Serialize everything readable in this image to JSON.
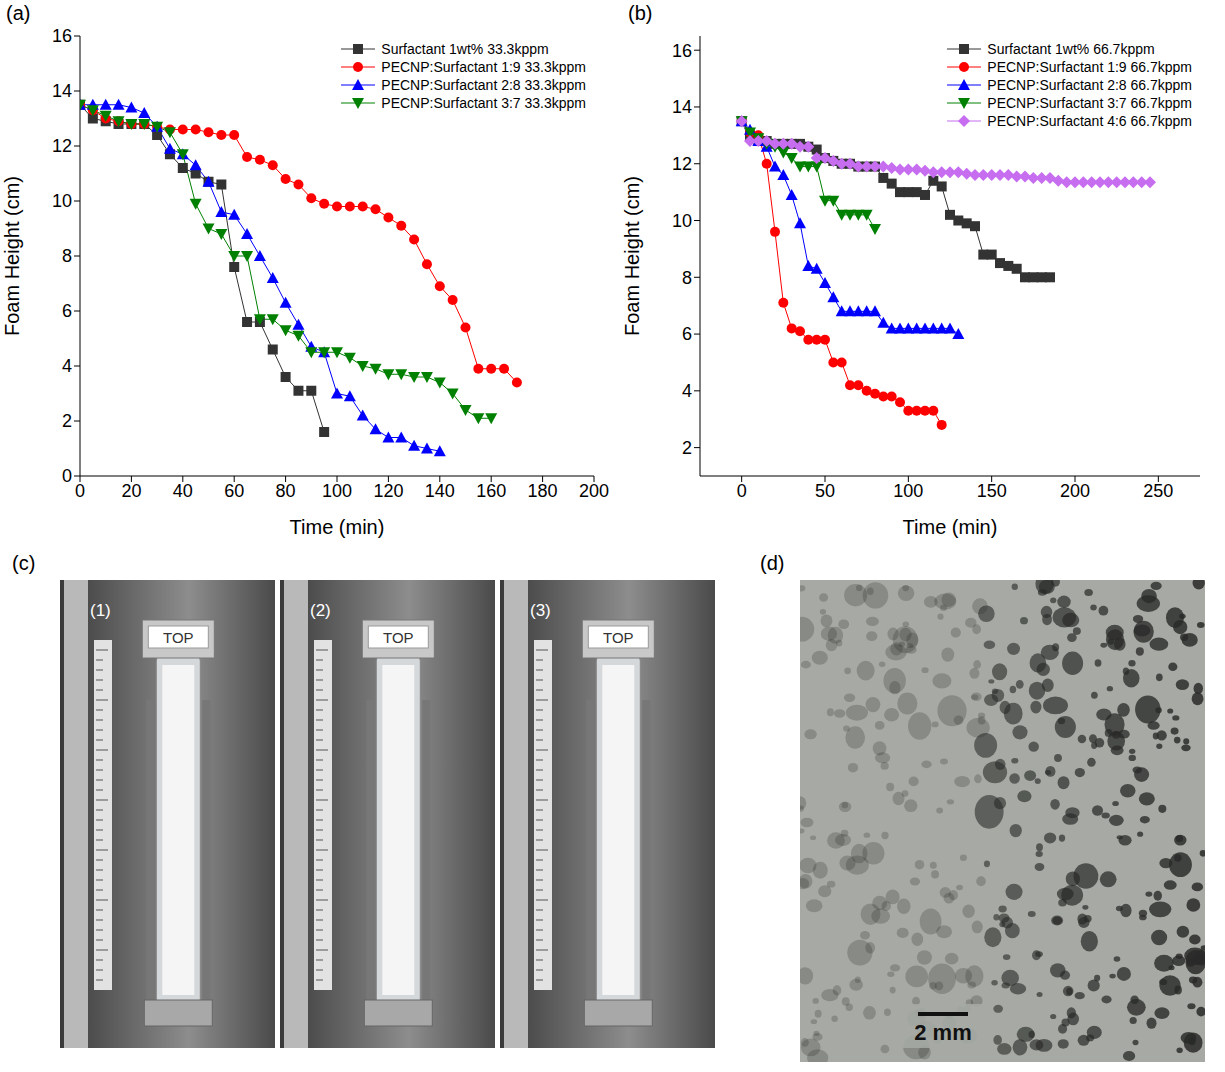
{
  "chart_data": [
    {
      "type": "line",
      "panel_label": "(a)",
      "x_label": "Time (min)",
      "y_label": "Foam Height (cm)",
      "xlim": [
        0,
        200
      ],
      "xticks": [
        0,
        20,
        40,
        60,
        80,
        100,
        120,
        140,
        160,
        180,
        200
      ],
      "ylim": [
        0,
        16
      ],
      "yticks": [
        0,
        2,
        4,
        6,
        8,
        10,
        12,
        14,
        16
      ],
      "legend": "upper right",
      "series": [
        {
          "name": "Surfactant 1wt% 33.3kppm",
          "color": "#333333",
          "marker": "square",
          "x": [
            0,
            5,
            10,
            15,
            20,
            25,
            30,
            35,
            40,
            45,
            50,
            55,
            60,
            65,
            70,
            75,
            80,
            85,
            90,
            95
          ],
          "values": [
            13.5,
            13.0,
            12.9,
            12.8,
            12.8,
            12.8,
            12.4,
            11.7,
            11.2,
            11.0,
            10.7,
            10.6,
            7.6,
            5.6,
            5.6,
            4.6,
            3.6,
            3.1,
            3.1,
            1.6
          ]
        },
        {
          "name": "PECNP:Surfactant 1:9 33.3kppm",
          "color": "#ff0000",
          "marker": "circle",
          "x": [
            0,
            5,
            10,
            15,
            20,
            25,
            30,
            35,
            40,
            45,
            50,
            55,
            60,
            65,
            70,
            75,
            80,
            85,
            90,
            95,
            100,
            105,
            110,
            115,
            120,
            125,
            130,
            135,
            140,
            145,
            150,
            155,
            160,
            165,
            170
          ],
          "values": [
            13.5,
            13.3,
            13.0,
            12.9,
            12.8,
            12.8,
            12.7,
            12.6,
            12.6,
            12.6,
            12.5,
            12.4,
            12.4,
            11.6,
            11.5,
            11.3,
            10.8,
            10.6,
            10.1,
            9.9,
            9.8,
            9.8,
            9.8,
            9.7,
            9.4,
            9.1,
            8.6,
            7.7,
            6.9,
            6.4,
            5.4,
            3.9,
            3.9,
            3.9,
            3.4
          ]
        },
        {
          "name": "PECNP:Surfactant 2:8 33.3kppm",
          "color": "#0000ff",
          "marker": "triangle",
          "x": [
            0,
            5,
            10,
            15,
            20,
            25,
            30,
            35,
            40,
            45,
            50,
            55,
            60,
            65,
            70,
            75,
            80,
            85,
            90,
            95,
            100,
            105,
            110,
            115,
            120,
            125,
            130,
            135,
            140
          ],
          "values": [
            13.5,
            13.5,
            13.5,
            13.5,
            13.4,
            13.2,
            12.7,
            11.9,
            11.7,
            11.3,
            10.7,
            9.6,
            9.5,
            8.8,
            8.0,
            7.2,
            6.3,
            5.5,
            4.7,
            4.5,
            3.0,
            2.9,
            2.2,
            1.7,
            1.4,
            1.4,
            1.1,
            1.0,
            0.9
          ]
        },
        {
          "name": "PECNP:Surfactant 3:7 33.3kppm",
          "color": "#008000",
          "marker": "triangle-down",
          "x": [
            0,
            5,
            10,
            15,
            20,
            25,
            30,
            35,
            40,
            45,
            50,
            55,
            60,
            65,
            70,
            75,
            80,
            85,
            90,
            95,
            100,
            105,
            110,
            115,
            120,
            125,
            130,
            135,
            140,
            145,
            150,
            155,
            160
          ],
          "values": [
            13.5,
            13.3,
            13.1,
            12.9,
            12.8,
            12.8,
            12.7,
            12.5,
            11.7,
            9.9,
            9.0,
            8.8,
            8.0,
            8.0,
            5.7,
            5.7,
            5.3,
            5.1,
            4.5,
            4.5,
            4.5,
            4.3,
            4.0,
            3.9,
            3.7,
            3.7,
            3.6,
            3.6,
            3.4,
            3.0,
            2.4,
            2.1,
            2.1
          ]
        }
      ]
    },
    {
      "type": "line",
      "panel_label": "(b)",
      "x_label": "Time (min)",
      "y_label": "Foam Height (cm)",
      "xlim": [
        -25,
        275
      ],
      "xticks": [
        0,
        50,
        100,
        150,
        200,
        250
      ],
      "ylim": [
        1,
        16.5
      ],
      "yticks": [
        2,
        4,
        6,
        8,
        10,
        12,
        14,
        16
      ],
      "legend": "upper right",
      "series": [
        {
          "name": "Surfactant 1wt% 66.7kppm",
          "color": "#333333",
          "marker": "square",
          "x": [
            0,
            5,
            10,
            15,
            20,
            25,
            30,
            35,
            40,
            45,
            50,
            55,
            60,
            65,
            70,
            75,
            80,
            85,
            90,
            95,
            100,
            105,
            110,
            115,
            120,
            125,
            130,
            135,
            140,
            145,
            150,
            155,
            160,
            165,
            170,
            175,
            180,
            185
          ],
          "values": [
            13.5,
            13.0,
            12.8,
            12.8,
            12.7,
            12.7,
            12.7,
            12.7,
            12.6,
            12.5,
            12.2,
            12.1,
            12.0,
            12.0,
            11.9,
            11.9,
            11.9,
            11.5,
            11.3,
            11.0,
            11.0,
            11.0,
            10.9,
            11.4,
            11.2,
            10.2,
            10.0,
            9.9,
            9.8,
            8.8,
            8.8,
            8.5,
            8.4,
            8.3,
            8.0,
            8.0,
            8.0,
            8.0
          ]
        },
        {
          "name": "PECNP:Surfactant 1:9 66.7kppm",
          "color": "#ff0000",
          "marker": "circle",
          "x": [
            0,
            5,
            10,
            15,
            20,
            25,
            30,
            35,
            40,
            45,
            50,
            55,
            60,
            65,
            70,
            75,
            80,
            85,
            90,
            95,
            100,
            105,
            110,
            115,
            120
          ],
          "values": [
            13.5,
            13.1,
            13.0,
            12.0,
            9.6,
            7.1,
            6.2,
            6.1,
            5.8,
            5.8,
            5.8,
            5.0,
            5.0,
            4.2,
            4.2,
            4.0,
            3.9,
            3.8,
            3.8,
            3.6,
            3.3,
            3.3,
            3.3,
            3.3,
            2.8
          ]
        },
        {
          "name": "PECNP:Surfactant 2:8 66.7kppm",
          "color": "#0000ff",
          "marker": "triangle",
          "x": [
            0,
            5,
            10,
            15,
            20,
            25,
            30,
            35,
            40,
            45,
            50,
            55,
            60,
            65,
            70,
            75,
            80,
            85,
            90,
            95,
            100,
            105,
            110,
            115,
            120,
            125,
            130
          ],
          "values": [
            13.5,
            13.2,
            12.8,
            12.6,
            11.9,
            11.6,
            10.9,
            9.9,
            8.4,
            8.3,
            7.8,
            7.3,
            6.8,
            6.8,
            6.8,
            6.8,
            6.8,
            6.4,
            6.2,
            6.2,
            6.2,
            6.2,
            6.2,
            6.2,
            6.2,
            6.2,
            6.0
          ]
        },
        {
          "name": "PECNP:Surfactant 3:7 66.7kppm",
          "color": "#008000",
          "marker": "triangle-down",
          "x": [
            0,
            5,
            10,
            15,
            20,
            25,
            30,
            35,
            40,
            45,
            50,
            55,
            60,
            65,
            70,
            75,
            80
          ],
          "values": [
            13.5,
            13.1,
            12.9,
            12.7,
            12.6,
            12.4,
            12.2,
            11.9,
            11.9,
            11.9,
            10.7,
            10.7,
            10.2,
            10.2,
            10.2,
            10.2,
            9.7
          ]
        },
        {
          "name": "PECNP:Surfactant 4:6 66.7kppm",
          "color": "#c66df0",
          "marker": "diamond",
          "x": [
            0,
            5,
            10,
            15,
            20,
            25,
            30,
            35,
            40,
            45,
            50,
            55,
            60,
            65,
            70,
            75,
            80,
            85,
            90,
            95,
            100,
            105,
            110,
            115,
            120,
            125,
            130,
            135,
            140,
            145,
            150,
            155,
            160,
            165,
            170,
            175,
            180,
            185,
            190,
            195,
            200,
            205,
            210,
            215,
            220,
            225,
            230,
            235,
            240,
            245
          ],
          "values": [
            13.5,
            12.8,
            12.8,
            12.8,
            12.7,
            12.7,
            12.7,
            12.6,
            12.6,
            12.2,
            12.2,
            12.1,
            12.0,
            12.0,
            11.9,
            11.9,
            11.9,
            11.9,
            11.85,
            11.8,
            11.8,
            11.8,
            11.75,
            11.7,
            11.7,
            11.7,
            11.7,
            11.65,
            11.6,
            11.6,
            11.6,
            11.6,
            11.6,
            11.55,
            11.55,
            11.5,
            11.5,
            11.5,
            11.4,
            11.35,
            11.35,
            11.35,
            11.35,
            11.35,
            11.35,
            11.35,
            11.35,
            11.35,
            11.35,
            11.35
          ]
        }
      ]
    }
  ],
  "figures": [
    {
      "panel_label": "(c)",
      "photos": [
        {
          "label": "(1)",
          "tag": "TOP"
        },
        {
          "label": "(2)",
          "tag": "TOP"
        },
        {
          "label": "(3)",
          "tag": "TOP"
        }
      ]
    },
    {
      "panel_label": "(d)",
      "scale_bar": "2 mm"
    }
  ]
}
